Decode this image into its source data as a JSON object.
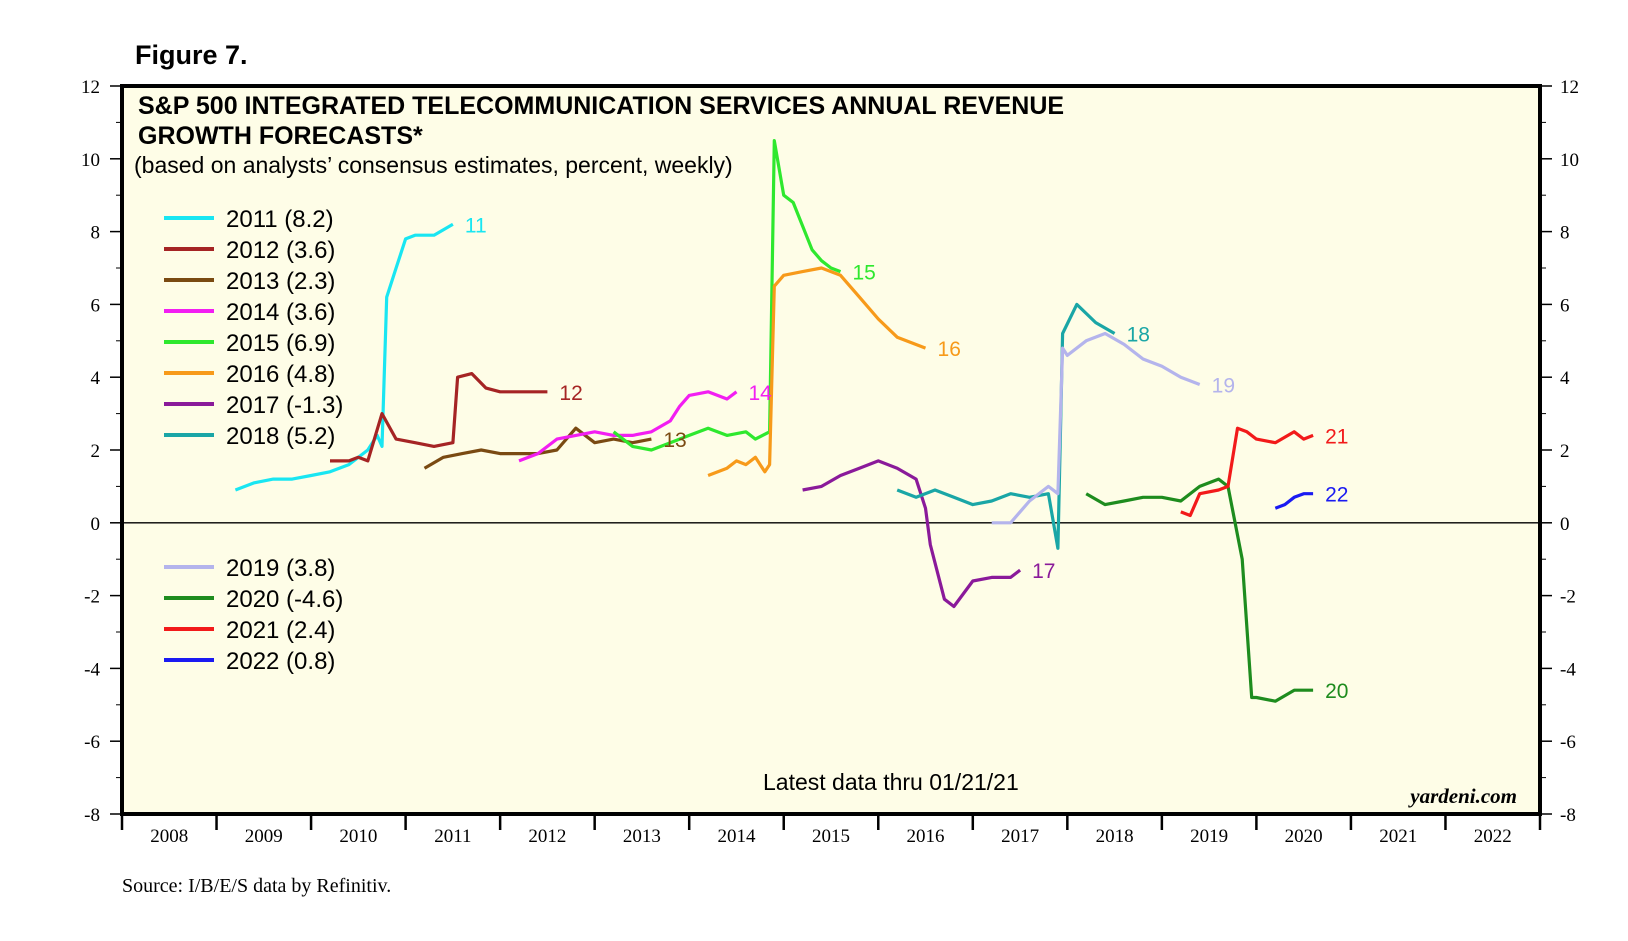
{
  "figure_label": "Figure 7.",
  "source": "Source: I/B/E/S data by Refinitiv.",
  "chart_data": {
    "type": "line",
    "title": "S&P 500 INTEGRATED TELECOMMUNICATION SERVICES ANNUAL REVENUE",
    "title_line2": "GROWTH FORECASTS*",
    "subtitle": "(based on analysts’ consensus estimates, percent, weekly)",
    "note": "Latest data thru 01/21/21",
    "brand": "yardeni.com",
    "xlim": [
      2008,
      2023
    ],
    "ylim": [
      -8,
      12
    ],
    "y_ticks": [
      12,
      10,
      8,
      6,
      4,
      2,
      0,
      -2,
      -4,
      -6,
      -8
    ],
    "x_tick_labels": [
      "2008",
      "2009",
      "2010",
      "2011",
      "2012",
      "2013",
      "2014",
      "2015",
      "2016",
      "2017",
      "2018",
      "2019",
      "2020",
      "2021",
      "2022"
    ],
    "legend_position": "left",
    "legend_top": [
      {
        "label": "2011 (8.2)",
        "color": "#19e6f2"
      },
      {
        "label": "2012 (3.6)",
        "color": "#a52424"
      },
      {
        "label": "2013 (2.3)",
        "color": "#7a4a12"
      },
      {
        "label": "2014 (3.6)",
        "color": "#f21ef2"
      },
      {
        "label": "2015 (6.9)",
        "color": "#2ee82e"
      },
      {
        "label": "2016 (4.8)",
        "color": "#f79a1a"
      },
      {
        "label": "2017 (-1.3)",
        "color": "#8a1a9a"
      },
      {
        "label": "2018 (5.2)",
        "color": "#1aa6a6"
      }
    ],
    "legend_bottom": [
      {
        "label": "2019 (3.8)",
        "color": "#b4b4ec"
      },
      {
        "label": "2020 (-4.6)",
        "color": "#1e8c1e"
      },
      {
        "label": "2021 (2.4)",
        "color": "#f21a1a"
      },
      {
        "label": "2022 (0.8)",
        "color": "#1a1af2"
      }
    ],
    "series": [
      {
        "name": "2011",
        "end_label": "11",
        "color": "#19e6f2",
        "x": [
          2009.2,
          2009.4,
          2009.6,
          2009.8,
          2010.0,
          2010.2,
          2010.4,
          2010.6,
          2010.7,
          2010.75,
          2010.8,
          2010.9,
          2011.0,
          2011.1,
          2011.3,
          2011.5
        ],
        "y": [
          0.9,
          1.1,
          1.2,
          1.2,
          1.3,
          1.4,
          1.6,
          2.0,
          2.4,
          2.1,
          6.2,
          7.0,
          7.8,
          7.9,
          7.9,
          8.2
        ]
      },
      {
        "name": "2012",
        "end_label": "12",
        "color": "#a52424",
        "x": [
          2010.2,
          2010.4,
          2010.5,
          2010.6,
          2010.75,
          2010.9,
          2011.1,
          2011.3,
          2011.5,
          2011.55,
          2011.7,
          2011.85,
          2012.0,
          2012.3,
          2012.5
        ],
        "y": [
          1.7,
          1.7,
          1.8,
          1.7,
          3.0,
          2.3,
          2.2,
          2.1,
          2.2,
          4.0,
          4.1,
          3.7,
          3.6,
          3.6,
          3.6
        ]
      },
      {
        "name": "2013",
        "end_label": "13",
        "color": "#7a4a12",
        "x": [
          2011.2,
          2011.4,
          2011.6,
          2011.8,
          2012.0,
          2012.2,
          2012.4,
          2012.6,
          2012.8,
          2013.0,
          2013.2,
          2013.4,
          2013.6
        ],
        "y": [
          1.5,
          1.8,
          1.9,
          2.0,
          1.9,
          1.9,
          1.9,
          2.0,
          2.6,
          2.2,
          2.3,
          2.2,
          2.3
        ]
      },
      {
        "name": "2014",
        "end_label": "14",
        "color": "#f21ef2",
        "x": [
          2012.2,
          2012.4,
          2012.6,
          2012.8,
          2013.0,
          2013.2,
          2013.4,
          2013.6,
          2013.8,
          2013.9,
          2014.0,
          2014.2,
          2014.4,
          2014.5
        ],
        "y": [
          1.7,
          1.9,
          2.3,
          2.4,
          2.5,
          2.4,
          2.4,
          2.5,
          2.8,
          3.2,
          3.5,
          3.6,
          3.4,
          3.6
        ]
      },
      {
        "name": "2015",
        "end_label": "15",
        "color": "#2ee82e",
        "x": [
          2013.2,
          2013.4,
          2013.6,
          2013.8,
          2014.0,
          2014.2,
          2014.4,
          2014.6,
          2014.7,
          2014.85,
          2014.9,
          2015.0,
          2015.1,
          2015.3,
          2015.4,
          2015.5,
          2015.6
        ],
        "y": [
          2.5,
          2.1,
          2.0,
          2.2,
          2.4,
          2.6,
          2.4,
          2.5,
          2.3,
          2.5,
          10.5,
          9.0,
          8.8,
          7.5,
          7.2,
          7.0,
          6.9
        ]
      },
      {
        "name": "2016",
        "end_label": "16",
        "color": "#f79a1a",
        "x": [
          2014.2,
          2014.4,
          2014.5,
          2014.6,
          2014.7,
          2014.8,
          2014.85,
          2014.9,
          2015.0,
          2015.2,
          2015.4,
          2015.6,
          2015.8,
          2016.0,
          2016.2,
          2016.5
        ],
        "y": [
          1.3,
          1.5,
          1.7,
          1.6,
          1.8,
          1.4,
          1.6,
          6.5,
          6.8,
          6.9,
          7.0,
          6.8,
          6.2,
          5.6,
          5.1,
          4.8
        ]
      },
      {
        "name": "2017",
        "end_label": "17",
        "color": "#8a1a9a",
        "x": [
          2015.2,
          2015.4,
          2015.6,
          2015.8,
          2016.0,
          2016.2,
          2016.4,
          2016.5,
          2016.55,
          2016.7,
          2016.8,
          2017.0,
          2017.2,
          2017.4,
          2017.5
        ],
        "y": [
          0.9,
          1.0,
          1.3,
          1.5,
          1.7,
          1.5,
          1.2,
          0.4,
          -0.6,
          -2.1,
          -2.3,
          -1.6,
          -1.5,
          -1.5,
          -1.3
        ]
      },
      {
        "name": "2018",
        "end_label": "18",
        "color": "#1aa6a6",
        "x": [
          2016.2,
          2016.4,
          2016.6,
          2016.8,
          2017.0,
          2017.2,
          2017.4,
          2017.6,
          2017.8,
          2017.9,
          2017.95,
          2018.1,
          2018.3,
          2018.5
        ],
        "y": [
          0.9,
          0.7,
          0.9,
          0.7,
          0.5,
          0.6,
          0.8,
          0.7,
          0.8,
          -0.7,
          5.2,
          6.0,
          5.5,
          5.2
        ]
      },
      {
        "name": "2019",
        "end_label": "19",
        "color": "#b4b4ec",
        "x": [
          2017.2,
          2017.4,
          2017.6,
          2017.8,
          2017.9,
          2017.95,
          2018.0,
          2018.2,
          2018.4,
          2018.6,
          2018.8,
          2019.0,
          2019.2,
          2019.4
        ],
        "y": [
          0.0,
          0.0,
          0.6,
          1.0,
          0.8,
          4.8,
          4.6,
          5.0,
          5.2,
          4.9,
          4.5,
          4.3,
          4.0,
          3.8
        ]
      },
      {
        "name": "2020",
        "end_label": "20",
        "color": "#1e8c1e",
        "x": [
          2018.2,
          2018.4,
          2018.6,
          2018.8,
          2019.0,
          2019.2,
          2019.4,
          2019.6,
          2019.7,
          2019.85,
          2019.95,
          2020.0,
          2020.2,
          2020.4,
          2020.6
        ],
        "y": [
          0.8,
          0.5,
          0.6,
          0.7,
          0.7,
          0.6,
          1.0,
          1.2,
          1.0,
          -1.0,
          -4.8,
          -4.8,
          -4.9,
          -4.6,
          -4.6
        ]
      },
      {
        "name": "2021",
        "end_label": "21",
        "color": "#f21a1a",
        "x": [
          2019.2,
          2019.3,
          2019.4,
          2019.6,
          2019.7,
          2019.8,
          2019.9,
          2020.0,
          2020.2,
          2020.4,
          2020.5,
          2020.6
        ],
        "y": [
          0.3,
          0.2,
          0.8,
          0.9,
          1.0,
          2.6,
          2.5,
          2.3,
          2.2,
          2.5,
          2.3,
          2.4
        ]
      },
      {
        "name": "2022",
        "end_label": "22",
        "color": "#1a1af2",
        "x": [
          2020.2,
          2020.3,
          2020.4,
          2020.5,
          2020.6
        ],
        "y": [
          0.4,
          0.5,
          0.7,
          0.8,
          0.8
        ]
      }
    ]
  }
}
